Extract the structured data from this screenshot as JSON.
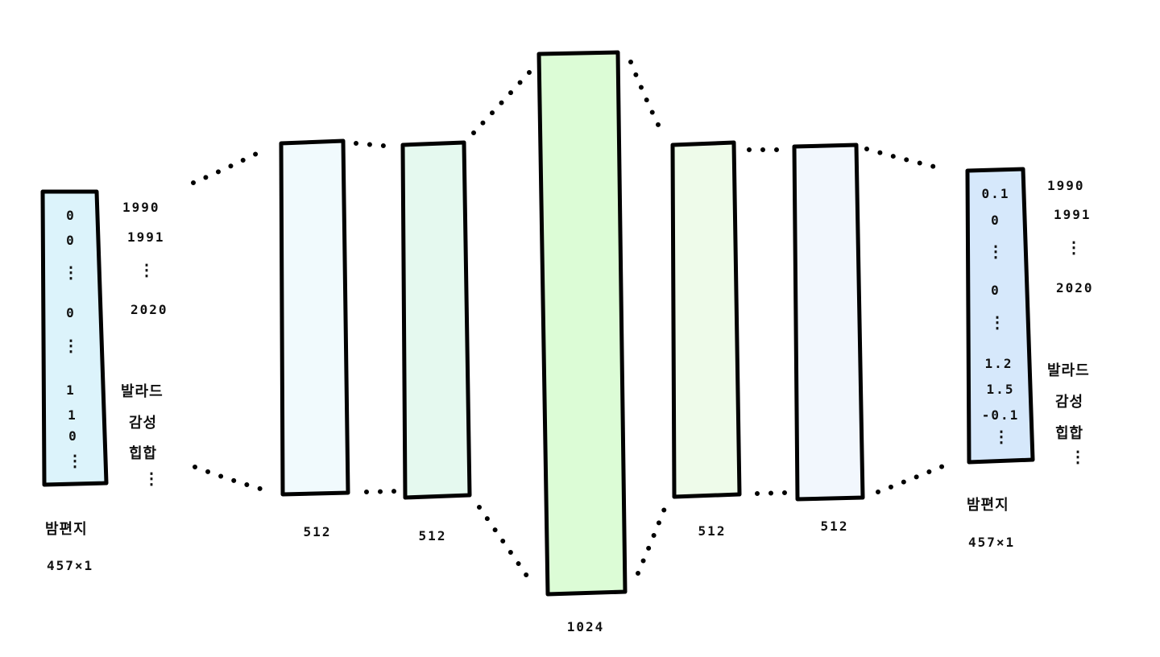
{
  "colors": {
    "stroke": "#000000",
    "input_fill": "#dcf3fb",
    "enc1_fill": "#f1fafd",
    "enc2_fill": "#e5f9ef",
    "mid_fill": "#dcfcd6",
    "dec1_fill": "#eefbea",
    "dec2_fill": "#f2f7fd",
    "output_fill": "#d6e8fb"
  },
  "input": {
    "cells": [
      "0",
      "0",
      "⋮",
      "0",
      "⋮",
      "1",
      "1",
      "0",
      "⋮"
    ],
    "labels": [
      "1990",
      "1991",
      "⋮",
      "2020",
      "발라드",
      "감성",
      "힙합",
      "⋮"
    ],
    "name": "밤편지",
    "size": "457×1"
  },
  "hidden_layers": [
    {
      "units": "512"
    },
    {
      "units": "512"
    },
    {
      "units": "1024"
    },
    {
      "units": "512"
    },
    {
      "units": "512"
    }
  ],
  "output": {
    "cells": [
      "0.1",
      "0",
      "⋮",
      "0",
      "⋮",
      "1.2",
      "1.5",
      "-0.1",
      "⋮"
    ],
    "labels": [
      "1990",
      "1991",
      "⋮",
      "2020",
      "발라드",
      "감성",
      "힙합",
      "⋮"
    ],
    "name": "밤편지",
    "size": "457×1"
  }
}
